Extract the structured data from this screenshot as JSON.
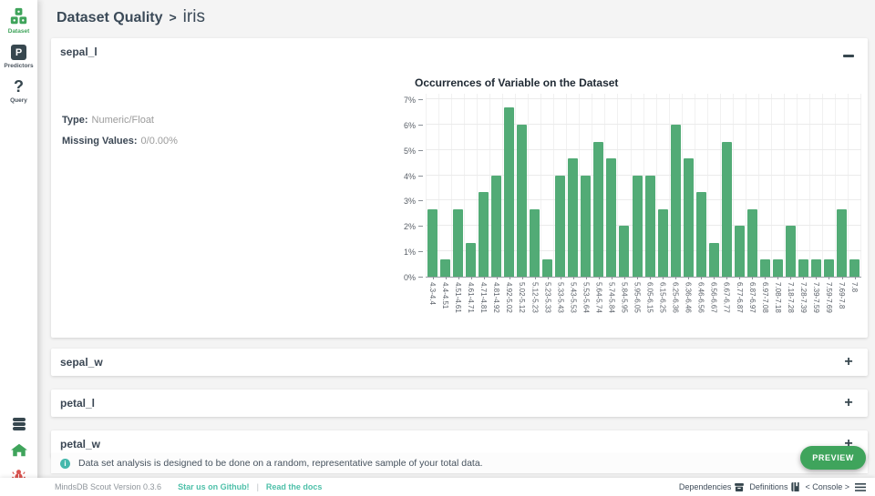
{
  "breadcrumb": {
    "section": "Dataset Quality",
    "separator": ">",
    "current": "iris"
  },
  "sidebar": {
    "items": [
      {
        "label": "Dataset",
        "icon": "dataset-cubes-icon",
        "active": true
      },
      {
        "label": "Predictors",
        "icon": "predictors-p-icon",
        "active": false,
        "badge": "P"
      },
      {
        "label": "Query",
        "icon": "query-question-icon",
        "active": false,
        "glyph": "?"
      }
    ],
    "bottom_icons": [
      "database-icon",
      "home-icon",
      "bug-icon"
    ]
  },
  "panels": [
    {
      "title": "sepal_l",
      "expanded": true,
      "fields": [
        {
          "label": "Type:",
          "value": "Numeric/Float"
        },
        {
          "label": "Missing Values:",
          "value": "0/0.00%"
        }
      ]
    },
    {
      "title": "sepal_w",
      "expanded": false
    },
    {
      "title": "petal_l",
      "expanded": false
    },
    {
      "title": "petal_w",
      "expanded": false
    }
  ],
  "chart_data": {
    "type": "bar",
    "title": "Occurrences of Variable on the Dataset",
    "categories": [
      "4.3-4.4",
      "4.4-4.51",
      "4.51-4.61",
      "4.61-4.71",
      "4.71-4.81",
      "4.81-4.92",
      "4.92-5.02",
      "5.02-5.12",
      "5.12-5.23",
      "5.23-5.33",
      "5.33-5.43",
      "5.43-5.53",
      "5.53-5.64",
      "5.64-5.74",
      "5.74-5.84",
      "5.84-5.95",
      "5.95-6.05",
      "6.05-6.15",
      "6.15-6.25",
      "6.25-6.36",
      "6.36-6.46",
      "6.46-6.56",
      "6.56-6.67",
      "6.67-6.77",
      "6.77-6.87",
      "6.87-6.97",
      "6.97-7.08",
      "7.08-7.18",
      "7.18-7.28",
      "7.28-7.39",
      "7.39-7.59",
      "7.59-7.69",
      "7.69-7.8",
      "7.8"
    ],
    "values": [
      2.67,
      0.67,
      2.67,
      1.33,
      3.33,
      4,
      6.67,
      6,
      2.67,
      0.67,
      4,
      4.67,
      4,
      5.33,
      4.67,
      2,
      4,
      4,
      2.67,
      6,
      4.67,
      3.33,
      1.33,
      5.33,
      2,
      2.67,
      0.67,
      0.67,
      2,
      0.67,
      0.67,
      0.67,
      2.67,
      0.67
    ],
    "y_ticks": [
      "0%",
      "1%",
      "2%",
      "3%",
      "4%",
      "5%",
      "6%",
      "7%"
    ],
    "ylim": [
      0,
      7.25
    ],
    "xlabel": "",
    "ylabel": "",
    "grid": true,
    "legend": false,
    "bar_color": "#52ab76"
  },
  "info_bar": {
    "text": "Data set analysis is designed to be done on a random, representative sample of your total data.",
    "icon": "info-circle-icon"
  },
  "preview_button": {
    "label": "PREVIEW"
  },
  "footer": {
    "version": "MindsDB Scout Version 0.3.6",
    "link_github": "Star us on Github!",
    "separator": "|",
    "link_docs": "Read the docs",
    "dependencies": "Dependencies",
    "definitions": "Definitions",
    "console": "< Console >"
  },
  "colors": {
    "accent_green": "#3fa45c",
    "bar_green": "#52ab76",
    "link_teal": "#4ec0a9",
    "icon_dark": "#37474f",
    "bug_red": "#d9534f"
  }
}
